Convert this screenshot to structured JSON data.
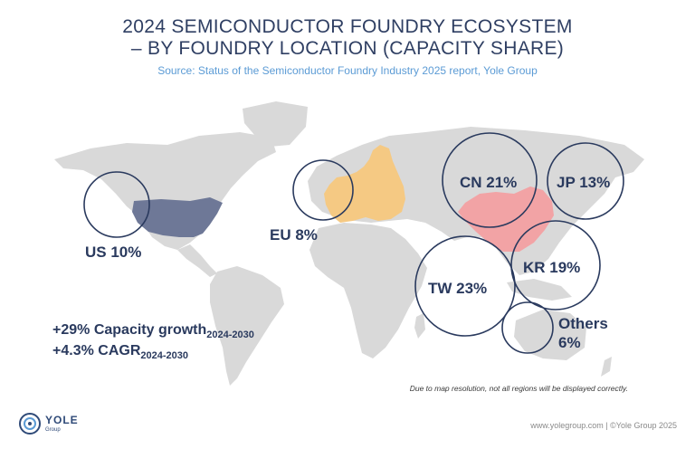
{
  "title_line1": "2024 SEMICONDUCTOR FOUNDRY ECOSYSTEM",
  "title_line2": "– BY FOUNDRY LOCATION (CAPACITY SHARE)",
  "source": "Source: Status of the Semiconductor Foundry Industry 2025 report, Yole Group",
  "regions": {
    "us": "US 10%",
    "eu": "EU 8%",
    "cn": "CN 21%",
    "jp": "JP 13%",
    "kr": "KR 19%",
    "tw": "TW 23%",
    "others_line1": "Others",
    "others_line2": "6%"
  },
  "stats": {
    "growth_main": "+29% Capacity growth",
    "growth_sub": "2024-2030",
    "cagr_main": "+4.3% CAGR",
    "cagr_sub": "2024-2030"
  },
  "note": "Due to map resolution, not all regions will be displayed correctly.",
  "footer": "www.yolegroup.com | ©Yole Group 2025",
  "logo": {
    "word": "YOLE",
    "sub": "Group"
  },
  "colors": {
    "land": "#d9d9d9",
    "us": "#6e7897",
    "eu": "#f5c983",
    "china": "#f2a3a5",
    "circle": "#2a3a5e",
    "title": "#2f3f63",
    "source": "#5b9bd5"
  }
}
